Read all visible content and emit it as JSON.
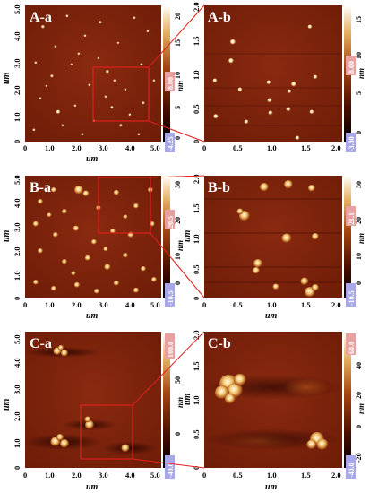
{
  "colors": {
    "afm_dark": "#2a0500",
    "afm_base": "#7a1f0a",
    "afm_light": "#fff3c8",
    "zoom_box": "#e0201a",
    "scale_high": "#e8a0a0",
    "scale_low": "#a8a8e8"
  },
  "panels": [
    {
      "id": "A-a",
      "label": "A-a",
      "x_ticks": [
        "0",
        "1.0",
        "2.0",
        "3.0",
        "4.0",
        "5.0"
      ],
      "y_ticks": [
        "0",
        "1.0",
        "2.0",
        "3.0",
        "4.0",
        "5.0"
      ],
      "xlabel": "um",
      "ylabel": "um",
      "colorbar_ticks": [
        "20",
        "15",
        "10",
        "5",
        "0"
      ],
      "colorbar_unit": "nm",
      "scale_max": "8.00",
      "scale_min": "-4.25"
    },
    {
      "id": "A-b",
      "label": "A-b",
      "x_ticks": [
        "0",
        "0.5",
        "1.0",
        "1.5",
        "2.0"
      ],
      "y_ticks": [
        "0",
        "0.5",
        "1.0",
        "1.5",
        "2.0"
      ],
      "xlabel": "",
      "ylabel": "",
      "colorbar_ticks": [
        "15",
        "10",
        "5",
        "0"
      ],
      "colorbar_unit": "nm",
      "scale_max": "8.00",
      "scale_min": "-3.80"
    },
    {
      "id": "B-a",
      "label": "B-a",
      "x_ticks": [
        "0",
        "1.0",
        "2.0",
        "3.0",
        "4.0",
        "5.0"
      ],
      "y_ticks": [
        "0",
        "1.0",
        "2.0",
        "3.0",
        "4.0",
        "5.0"
      ],
      "xlabel": "um",
      "ylabel": "um",
      "colorbar_ticks": [
        "30",
        "20",
        "10",
        "0"
      ],
      "colorbar_unit": "nm",
      "scale_max": "20.5",
      "scale_min": "-10.5"
    },
    {
      "id": "B-b",
      "label": "B-b",
      "x_ticks": [
        "0",
        "0.5",
        "1.0",
        "1.5",
        "2.0"
      ],
      "y_ticks": [
        "0",
        "0.5",
        "1.0",
        "1.5",
        "2.0"
      ],
      "xlabel": "um",
      "ylabel": "um",
      "colorbar_ticks": [
        "30",
        "20",
        "10",
        "0"
      ],
      "colorbar_unit": "nm",
      "scale_max": "21.1",
      "scale_min": "-10.5"
    },
    {
      "id": "C-a",
      "label": "C-a",
      "x_ticks": [
        "0",
        "1.0",
        "2.0",
        "3.0",
        "4.0",
        "5.0"
      ],
      "y_ticks": [
        "0",
        "1.0",
        "2.0",
        "3.0",
        "4.0",
        "5.0"
      ],
      "xlabel": "um",
      "ylabel": "um",
      "colorbar_ticks": [
        "50",
        "0"
      ],
      "colorbar_unit": "nm",
      "scale_max": "100.0",
      "scale_min": "-40.0"
    },
    {
      "id": "C-b",
      "label": "C-b",
      "x_ticks": [
        "0",
        "0.5",
        "1.0",
        "1.5",
        "2.0"
      ],
      "y_ticks": [
        "0",
        "0.5",
        "1.0",
        "1.5",
        "2.0"
      ],
      "xlabel": "um",
      "ylabel": "um",
      "colorbar_ticks": [
        "40",
        "20",
        "0",
        "-20"
      ],
      "colorbar_unit": "nm",
      "scale_max": "60.0",
      "scale_min": "-40.0"
    }
  ]
}
